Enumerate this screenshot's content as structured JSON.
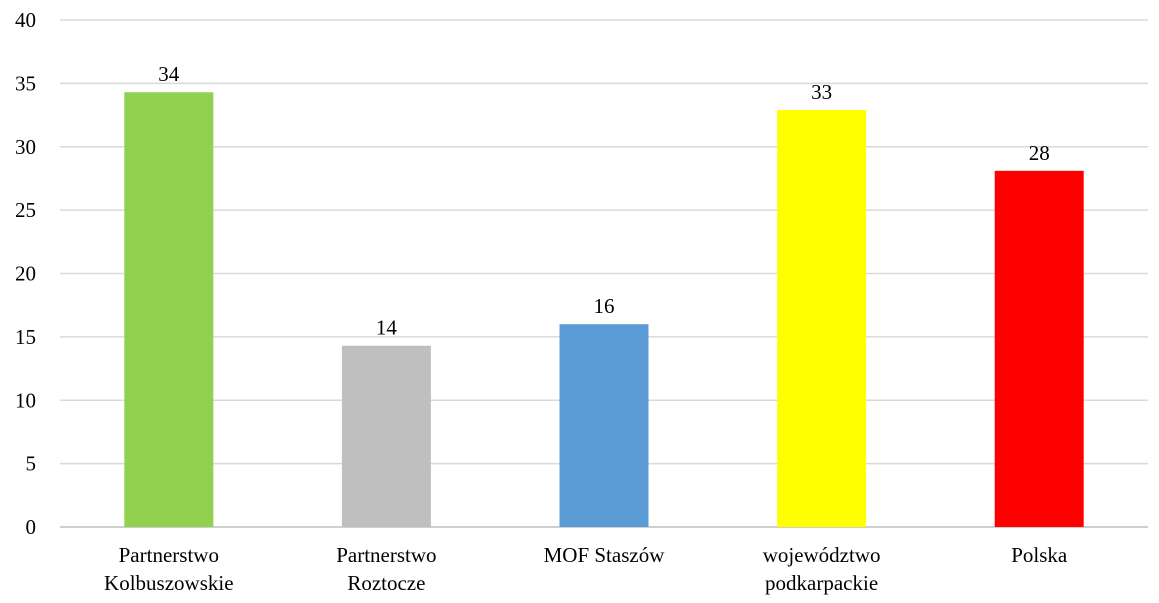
{
  "chart_data": {
    "type": "bar",
    "categories": [
      [
        "Partnerstwo",
        "Kolbuszowskie"
      ],
      [
        "Partnerstwo",
        "Roztocze"
      ],
      [
        "MOF Staszów"
      ],
      [
        "województwo",
        "podkarpackie"
      ],
      [
        "Polska"
      ]
    ],
    "values": [
      34.3,
      14.3,
      16.0,
      32.9,
      28.1
    ],
    "data_labels": [
      "34",
      "14",
      "16",
      "33",
      "28"
    ],
    "colors": [
      "#92d050",
      "#bfbfbf",
      "#5b9bd5",
      "#ffff00",
      "#ff0000"
    ],
    "ylim": [
      0,
      40
    ],
    "yticks": [
      0,
      5,
      10,
      15,
      20,
      25,
      30,
      35,
      40
    ],
    "grid": true,
    "legend": false
  }
}
